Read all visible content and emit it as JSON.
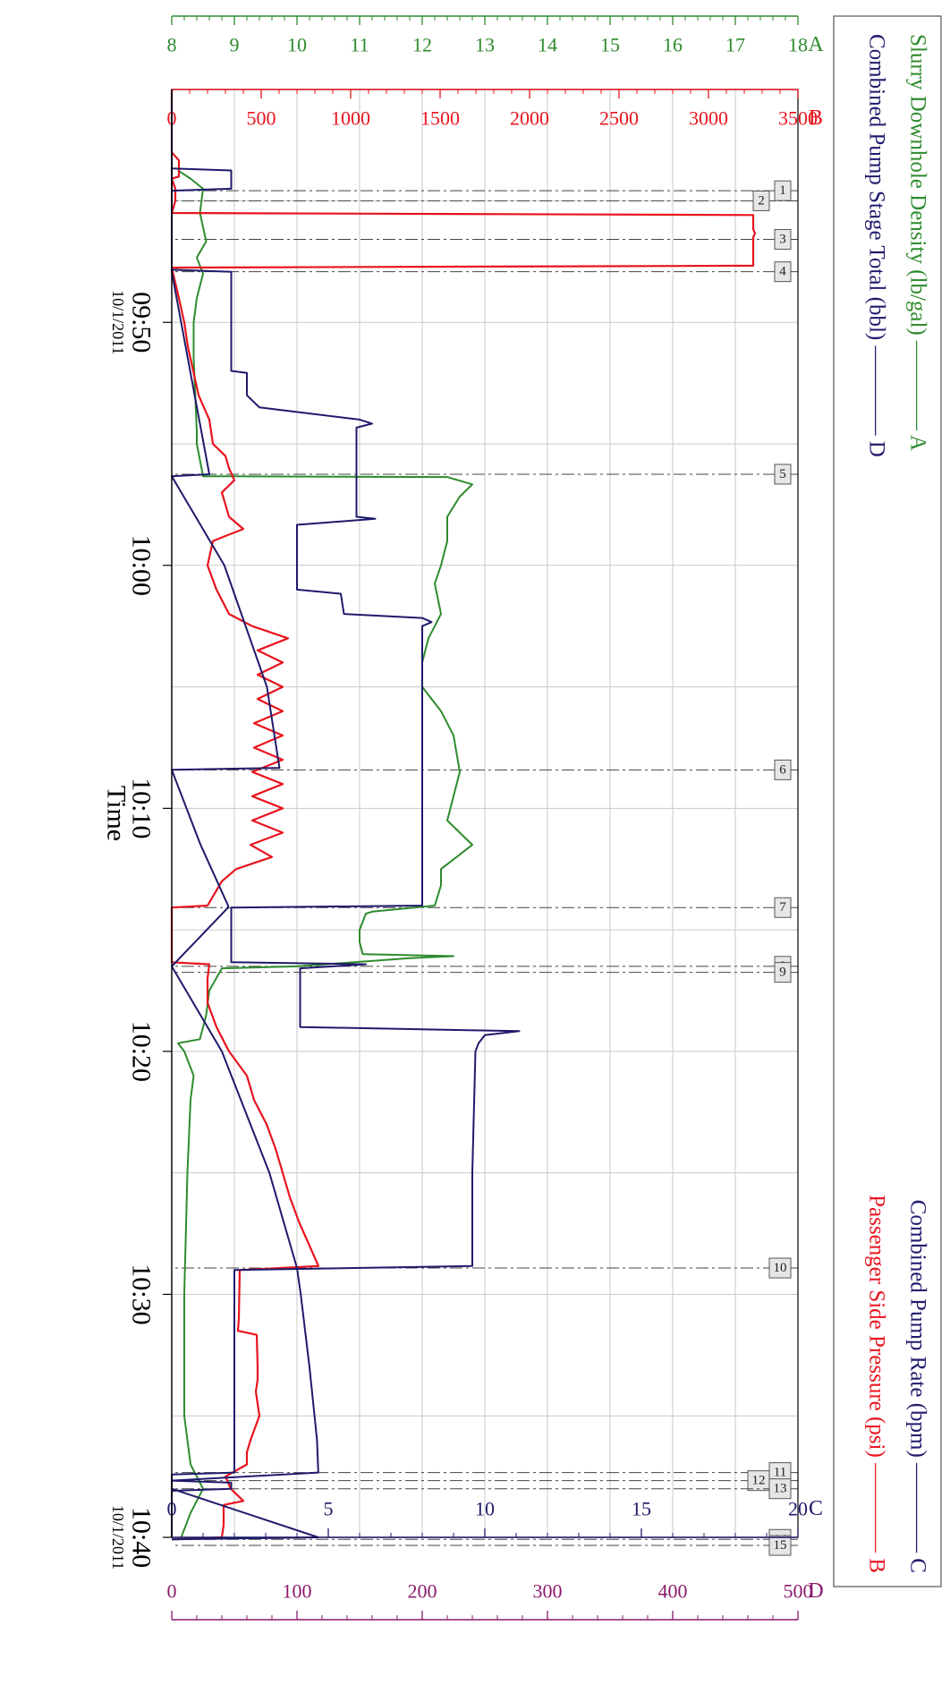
{
  "chart_data": {
    "type": "line",
    "xlabel": "Time",
    "x_ticks": [
      "09:50",
      "10:00",
      "10:10",
      "10:20",
      "10:30",
      "10:40"
    ],
    "x_start_date": "10/1/2011",
    "x_end_date": "10/1/2011",
    "x_range": [
      "09:40:25",
      "10:40:00"
    ],
    "grid": true,
    "legend_placement": "top",
    "axes": [
      {
        "id": "A",
        "range": [
          8,
          18
        ],
        "ticks": [
          8,
          9,
          10,
          11,
          12,
          13,
          14,
          15,
          16,
          17,
          18
        ],
        "color": "#2e8b2e",
        "position": "left-outer"
      },
      {
        "id": "B",
        "range": [
          0,
          3500
        ],
        "ticks": [
          0,
          500,
          1000,
          1500,
          2000,
          2500,
          3000,
          3500
        ],
        "color": "#e8141e",
        "position": "left-inner"
      },
      {
        "id": "C",
        "range": [
          0,
          20
        ],
        "ticks": [
          0,
          5,
          10,
          15,
          20
        ],
        "color": "#1f1a6b",
        "position": "right-inner"
      },
      {
        "id": "D",
        "range": [
          0,
          500
        ],
        "ticks": [
          0,
          100,
          200,
          300,
          400,
          500
        ],
        "color": "#8b1a6b",
        "position": "right-outer"
      }
    ],
    "legend": [
      {
        "name": "Slurry Downhole Density (lb/gal)",
        "axis": "A",
        "color": "#2e8b2e"
      },
      {
        "name": "Combined Pump Rate (bpm)",
        "axis": "C",
        "color": "#1f1a6b"
      },
      {
        "name": "Combined Pump Stage Total (bbl)",
        "axis": "D",
        "color": "#1f1a6b"
      },
      {
        "name": "Passenger Side Pressure (psi)",
        "axis": "B",
        "color": "#e8141e"
      }
    ],
    "events": [
      {
        "label": "1",
        "time": "09:44:35"
      },
      {
        "label": "2",
        "time": "09:45:00"
      },
      {
        "label": "3",
        "time": "09:46:35"
      },
      {
        "label": "4",
        "time": "09:47:55"
      },
      {
        "label": "5",
        "time": "09:56:15"
      },
      {
        "label": "6",
        "time": "10:08:25"
      },
      {
        "label": "7",
        "time": "10:14:05"
      },
      {
        "label": "8",
        "time": "10:16:30"
      },
      {
        "label": "9",
        "time": "10:16:45"
      },
      {
        "label": "10",
        "time": "10:28:55"
      },
      {
        "label": "11",
        "time": "10:37:20"
      },
      {
        "label": "12",
        "time": "10:37:40"
      },
      {
        "label": "13",
        "time": "10:38:00"
      },
      {
        "label": "14",
        "time": "10:40:05"
      },
      {
        "label": "15",
        "time": "10:40:20"
      }
    ],
    "series": [
      {
        "name": "Slurry Downhole Density (lb/gal)",
        "axis": "A",
        "color": "#2e8b2e",
        "points": [
          [
            "09:43:45",
            8.1
          ],
          [
            "09:44:05",
            8.3
          ],
          [
            "09:44:30",
            8.5
          ],
          [
            "09:45:30",
            8.45
          ],
          [
            "09:46:40",
            8.55
          ],
          [
            "09:47:20",
            8.4
          ],
          [
            "09:48:00",
            8.5
          ],
          [
            "09:49:00",
            8.4
          ],
          [
            "09:50:00",
            8.35
          ],
          [
            "09:51:30",
            8.35
          ],
          [
            "09:54:30",
            8.4
          ],
          [
            "09:55:00",
            8.4
          ],
          [
            "09:56:20",
            8.5
          ],
          [
            "09:56:22",
            12.4
          ],
          [
            "09:56:40",
            12.8
          ],
          [
            "09:57:10",
            12.6
          ],
          [
            "09:58:00",
            12.4
          ],
          [
            "09:59:00",
            12.4
          ],
          [
            "10:00:00",
            12.3
          ],
          [
            "10:00:45",
            12.2
          ],
          [
            "10:02:00",
            12.3
          ],
          [
            "10:03:00",
            12.1
          ],
          [
            "10:04:00",
            12.0
          ],
          [
            "10:05:00",
            12.0
          ],
          [
            "10:06:00",
            12.3
          ],
          [
            "10:07:00",
            12.5
          ],
          [
            "10:08:30",
            12.6
          ],
          [
            "10:09:30",
            12.5
          ],
          [
            "10:10:30",
            12.4
          ],
          [
            "10:11:30",
            12.8
          ],
          [
            "10:12:30",
            12.3
          ],
          [
            "10:13:10",
            12.3
          ],
          [
            "10:14:00",
            12.2
          ],
          [
            "10:14:15",
            11.2
          ],
          [
            "10:14:20",
            11.1
          ],
          [
            "10:15:00",
            11.0
          ],
          [
            "10:15:30",
            11.0
          ],
          [
            "10:16:00",
            11.05
          ],
          [
            "10:16:05",
            12.5
          ],
          [
            "10:16:10",
            11.8
          ],
          [
            "10:16:30",
            10.0
          ],
          [
            "10:16:35",
            8.8
          ],
          [
            "10:17:30",
            8.6
          ],
          [
            "10:18:30",
            8.55
          ],
          [
            "10:19:30",
            8.45
          ],
          [
            "10:19:40",
            8.1
          ],
          [
            "10:20:00",
            8.2
          ],
          [
            "10:20:40",
            8.3
          ],
          [
            "10:21:00",
            8.35
          ],
          [
            "10:22:00",
            8.3
          ],
          [
            "10:25:00",
            8.25
          ],
          [
            "10:30:00",
            8.2
          ],
          [
            "10:35:00",
            8.2
          ],
          [
            "10:37:00",
            8.3
          ],
          [
            "10:38:00",
            8.5
          ],
          [
            "10:39:00",
            8.3
          ],
          [
            "10:40:00",
            8.15
          ]
        ]
      },
      {
        "name": "Passenger Side Pressure (psi)",
        "axis": "B",
        "color": "#e8141e",
        "points": [
          [
            "09:40:25",
            0
          ],
          [
            "09:43:00",
            0
          ],
          [
            "09:43:20",
            40
          ],
          [
            "09:44:00",
            40
          ],
          [
            "09:44:05",
            0
          ],
          [
            "09:44:30",
            20
          ],
          [
            "09:45:00",
            20
          ],
          [
            "09:45:30",
            0
          ],
          [
            "09:45:35",
            3250
          ],
          [
            "09:46:10",
            3250
          ],
          [
            "09:46:20",
            3260
          ],
          [
            "09:46:30",
            3250
          ],
          [
            "09:47:40",
            3250
          ],
          [
            "09:47:45",
            0
          ],
          [
            "09:49:00",
            40
          ],
          [
            "09:50:00",
            70
          ],
          [
            "09:51:00",
            90
          ],
          [
            "09:52:00",
            120
          ],
          [
            "09:53:00",
            150
          ],
          [
            "09:54:00",
            210
          ],
          [
            "09:55:00",
            230
          ],
          [
            "09:55:30",
            300
          ],
          [
            "09:56:00",
            320
          ],
          [
            "09:56:30",
            350
          ],
          [
            "09:57:00",
            280
          ],
          [
            "09:58:00",
            320
          ],
          [
            "09:58:30",
            400
          ],
          [
            "09:59:00",
            230
          ],
          [
            "10:00:00",
            200
          ],
          [
            "10:01:00",
            250
          ],
          [
            "10:02:00",
            320
          ],
          [
            "10:02:30",
            450
          ],
          [
            "10:03:00",
            650
          ],
          [
            "10:03:30",
            480
          ],
          [
            "10:04:00",
            620
          ],
          [
            "10:04:30",
            480
          ],
          [
            "10:05:00",
            620
          ],
          [
            "10:05:30",
            480
          ],
          [
            "10:06:00",
            620
          ],
          [
            "10:06:30",
            460
          ],
          [
            "10:07:00",
            620
          ],
          [
            "10:07:30",
            460
          ],
          [
            "10:08:00",
            620
          ],
          [
            "10:08:30",
            450
          ],
          [
            "10:09:00",
            620
          ],
          [
            "10:09:30",
            450
          ],
          [
            "10:10:00",
            620
          ],
          [
            "10:10:30",
            450
          ],
          [
            "10:11:00",
            620
          ],
          [
            "10:11:30",
            440
          ],
          [
            "10:12:00",
            560
          ],
          [
            "10:12:30",
            360
          ],
          [
            "10:13:00",
            280
          ],
          [
            "10:13:30",
            240
          ],
          [
            "10:14:00",
            200
          ],
          [
            "10:14:05",
            0
          ],
          [
            "10:16:20",
            0
          ],
          [
            "10:16:25",
            210
          ],
          [
            "10:17:00",
            200
          ],
          [
            "10:18:00",
            200
          ],
          [
            "10:19:00",
            250
          ],
          [
            "10:20:00",
            320
          ],
          [
            "10:21:00",
            420
          ],
          [
            "10:22:00",
            460
          ],
          [
            "10:23:00",
            530
          ],
          [
            "10:24:00",
            580
          ],
          [
            "10:25:00",
            620
          ],
          [
            "10:26:00",
            660
          ],
          [
            "10:27:00",
            710
          ],
          [
            "10:28:00",
            770
          ],
          [
            "10:28:50",
            820
          ],
          [
            "10:29:00",
            380
          ],
          [
            "10:31:00",
            375
          ],
          [
            "10:31:30",
            370
          ],
          [
            "10:31:40",
            475
          ],
          [
            "10:33:00",
            480
          ],
          [
            "10:33:30",
            480
          ],
          [
            "10:34:00",
            470
          ],
          [
            "10:35:00",
            490
          ],
          [
            "10:36:00",
            440
          ],
          [
            "10:36:30",
            420
          ],
          [
            "10:37:00",
            420
          ],
          [
            "10:37:30",
            300
          ],
          [
            "10:38:00",
            330
          ],
          [
            "10:38:30",
            400
          ],
          [
            "10:38:40",
            290
          ],
          [
            "10:39:30",
            290
          ],
          [
            "10:40:00",
            280
          ],
          [
            "10:40:05",
            0
          ]
        ]
      },
      {
        "name": "Combined Pump Rate (bpm)",
        "axis": "C",
        "color": "#1f1a6b",
        "points": [
          [
            "09:40:25",
            0
          ],
          [
            "09:43:40",
            0
          ],
          [
            "09:43:45",
            1.9
          ],
          [
            "09:44:30",
            1.9
          ],
          [
            "09:44:35",
            0
          ],
          [
            "09:47:50",
            0
          ],
          [
            "09:47:55",
            1.9
          ],
          [
            "09:48:30",
            1.9
          ],
          [
            "09:52:00",
            1.9
          ],
          [
            "09:52:05",
            2.4
          ],
          [
            "09:53:00",
            2.4
          ],
          [
            "09:53:30",
            2.8
          ],
          [
            "09:54:00",
            6.0
          ],
          [
            "09:54:10",
            6.4
          ],
          [
            "09:54:20",
            5.9
          ],
          [
            "09:56:00",
            5.9
          ],
          [
            "09:56:10",
            5.9
          ],
          [
            "09:58:00",
            5.9
          ],
          [
            "09:58:05",
            6.5
          ],
          [
            "09:58:20",
            4.0
          ],
          [
            "10:00:00",
            4.0
          ],
          [
            "10:01:00",
            4.0
          ],
          [
            "10:01:10",
            5.4
          ],
          [
            "10:02:00",
            5.5
          ],
          [
            "10:02:10",
            8.0
          ],
          [
            "10:02:20",
            8.3
          ],
          [
            "10:02:30",
            8.0
          ],
          [
            "10:13:00",
            8.0
          ],
          [
            "10:14:00",
            8.0
          ],
          [
            "10:14:05",
            1.9
          ],
          [
            "10:16:20",
            1.9
          ],
          [
            "10:16:25",
            6.2
          ],
          [
            "10:16:35",
            4.1
          ],
          [
            "10:19:00",
            4.1
          ],
          [
            "10:19:10",
            11.1
          ],
          [
            "10:19:20",
            10.0
          ],
          [
            "10:19:40",
            9.8
          ],
          [
            "10:20:00",
            9.7
          ],
          [
            "10:25:00",
            9.6
          ],
          [
            "10:28:50",
            9.6
          ],
          [
            "10:29:00",
            2.0
          ],
          [
            "10:31:00",
            2.0
          ],
          [
            "10:36:20",
            2.0
          ],
          [
            "10:36:30",
            2.0
          ],
          [
            "10:37:20",
            2.0
          ],
          [
            "10:37:25",
            0
          ],
          [
            "10:37:40",
            0
          ],
          [
            "10:37:45",
            1.9
          ],
          [
            "10:38:00",
            1.9
          ],
          [
            "10:38:05",
            0
          ],
          [
            "10:40:00",
            0
          ]
        ]
      },
      {
        "name": "Combined Pump Stage Total (bbl)",
        "axis": "D",
        "color": "#1f1a6b",
        "points": [
          [
            "09:40:25",
            0
          ],
          [
            "09:44:35",
            0
          ],
          [
            "09:47:55",
            0
          ],
          [
            "09:56:15",
            30
          ],
          [
            "09:56:20",
            0
          ],
          [
            "10:00:00",
            42
          ],
          [
            "10:05:00",
            76
          ],
          [
            "10:08:20",
            86
          ],
          [
            "10:08:25",
            0
          ],
          [
            "10:11:30",
            23
          ],
          [
            "10:14:00",
            45
          ],
          [
            "10:14:05",
            45
          ],
          [
            "10:16:30",
            0
          ],
          [
            "10:20:00",
            40
          ],
          [
            "10:25:00",
            78
          ],
          [
            "10:28:55",
            100
          ],
          [
            "10:30:00",
            103
          ],
          [
            "10:33:00",
            110
          ],
          [
            "10:36:00",
            116
          ],
          [
            "10:37:20",
            117
          ],
          [
            "10:37:40",
            0
          ],
          [
            "10:38:00",
            0
          ],
          [
            "10:40:00",
            117
          ],
          [
            "10:40:05",
            0
          ]
        ]
      }
    ]
  }
}
